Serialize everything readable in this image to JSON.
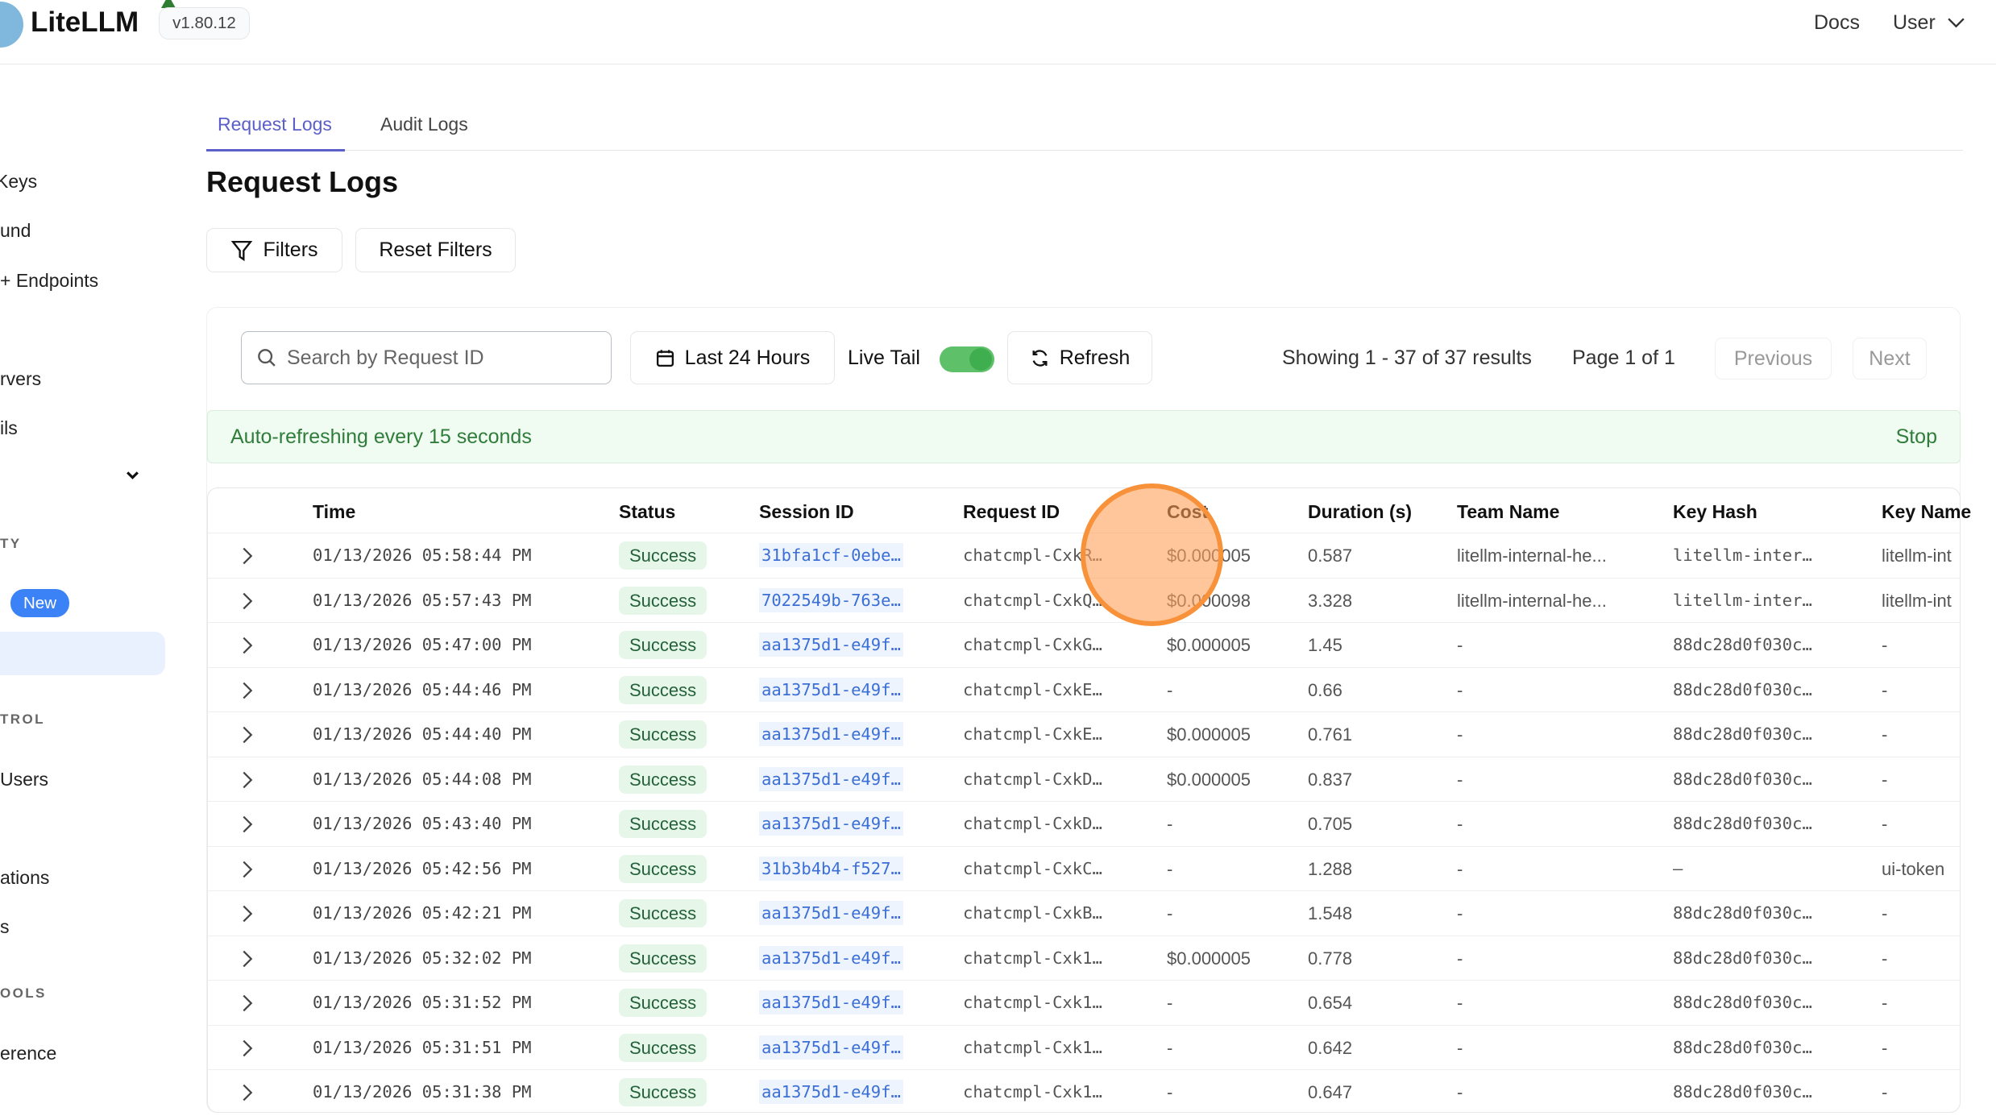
{
  "header": {
    "brand": "LiteLLM",
    "version": "v1.80.12",
    "nav": {
      "docs": "Docs",
      "user": "User"
    }
  },
  "sidebar": {
    "items": [
      "Keys",
      "und",
      "+ Endpoints",
      "rvers",
      "ils",
      "Users",
      "ations",
      "s",
      "erence"
    ],
    "sections": [
      "TY",
      "TROL",
      "OOLS"
    ],
    "new_badge": "New"
  },
  "tabs": [
    {
      "label": "Request Logs",
      "active": true
    },
    {
      "label": "Audit Logs",
      "active": false
    }
  ],
  "page_title": "Request Logs",
  "actions": {
    "filters": "Filters",
    "reset": "Reset Filters"
  },
  "toolbar": {
    "search_placeholder": "Search by Request ID",
    "date_range": "Last 24 Hours",
    "live_tail": "Live Tail",
    "live_tail_on": true,
    "refresh": "Refresh",
    "showing": "Showing 1 - 37 of 37 results",
    "page": "Page 1 of 1",
    "previous": "Previous",
    "next": "Next"
  },
  "banner": {
    "text": "Auto-refreshing every 15 seconds",
    "stop": "Stop"
  },
  "colors": {
    "accent": "#5b5fc7",
    "success_bg": "#e6f7ea",
    "toggle": "#5ec16a",
    "highlight": "#f7923a"
  },
  "table": {
    "columns": [
      "Time",
      "Status",
      "Session ID",
      "Request ID",
      "Cost",
      "Duration (s)",
      "Team Name",
      "Key Hash",
      "Key Name"
    ],
    "rows": [
      [
        "01/13/2026 05:58:44 PM",
        "Success",
        "31bfa1cf-0ebe…",
        "chatcmpl-CxkR…",
        "$0.000005",
        "0.587",
        "litellm-internal-he...",
        "litellm-inter…",
        "litellm-int"
      ],
      [
        "01/13/2026 05:57:43 PM",
        "Success",
        "7022549b-763e…",
        "chatcmpl-CxkQ…",
        "$0.000098",
        "3.328",
        "litellm-internal-he...",
        "litellm-inter…",
        "litellm-int"
      ],
      [
        "01/13/2026 05:47:00 PM",
        "Success",
        "aa1375d1-e49f…",
        "chatcmpl-CxkG…",
        "$0.000005",
        "1.45",
        "-",
        "88dc28d0f030c…",
        "-"
      ],
      [
        "01/13/2026 05:44:46 PM",
        "Success",
        "aa1375d1-e49f…",
        "chatcmpl-CxkE…",
        "-",
        "0.66",
        "-",
        "88dc28d0f030c…",
        "-"
      ],
      [
        "01/13/2026 05:44:40 PM",
        "Success",
        "aa1375d1-e49f…",
        "chatcmpl-CxkE…",
        "$0.000005",
        "0.761",
        "-",
        "88dc28d0f030c…",
        "-"
      ],
      [
        "01/13/2026 05:44:08 PM",
        "Success",
        "aa1375d1-e49f…",
        "chatcmpl-CxkD…",
        "$0.000005",
        "0.837",
        "-",
        "88dc28d0f030c…",
        "-"
      ],
      [
        "01/13/2026 05:43:40 PM",
        "Success",
        "aa1375d1-e49f…",
        "chatcmpl-CxkD…",
        "-",
        "0.705",
        "-",
        "88dc28d0f030c…",
        "-"
      ],
      [
        "01/13/2026 05:42:56 PM",
        "Success",
        "31b3b4b4-f527…",
        "chatcmpl-CxkC…",
        "-",
        "1.288",
        "-",
        "–",
        "ui-token"
      ],
      [
        "01/13/2026 05:42:21 PM",
        "Success",
        "aa1375d1-e49f…",
        "chatcmpl-CxkB…",
        "-",
        "1.548",
        "-",
        "88dc28d0f030c…",
        "-"
      ],
      [
        "01/13/2026 05:32:02 PM",
        "Success",
        "aa1375d1-e49f…",
        "chatcmpl-Cxk1…",
        "$0.000005",
        "0.778",
        "-",
        "88dc28d0f030c…",
        "-"
      ],
      [
        "01/13/2026 05:31:52 PM",
        "Success",
        "aa1375d1-e49f…",
        "chatcmpl-Cxk1…",
        "-",
        "0.654",
        "-",
        "88dc28d0f030c…",
        "-"
      ],
      [
        "01/13/2026 05:31:51 PM",
        "Success",
        "aa1375d1-e49f…",
        "chatcmpl-Cxk1…",
        "-",
        "0.642",
        "-",
        "88dc28d0f030c…",
        "-"
      ],
      [
        "01/13/2026 05:31:38 PM",
        "Success",
        "aa1375d1-e49f…",
        "chatcmpl-Cxk1…",
        "-",
        "0.647",
        "-",
        "88dc28d0f030c…",
        "-"
      ]
    ]
  }
}
